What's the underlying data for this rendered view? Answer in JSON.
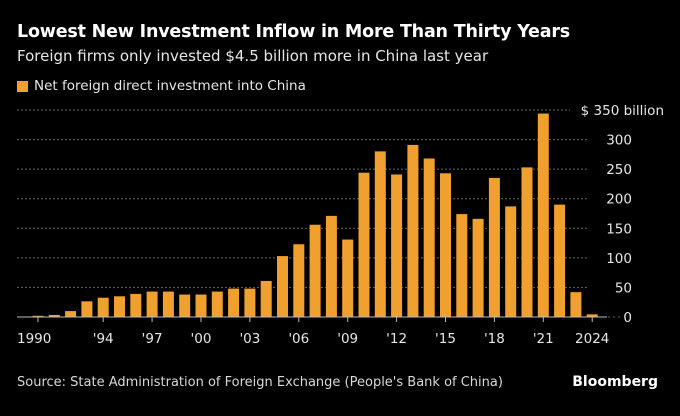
{
  "title": "Lowest New Investment Inflow in More Than Thirty Years",
  "subtitle": "Foreign firms only invested $4.5 billion more in China last year",
  "source": "Source: State Administration of Foreign Exchange (People's Bank of China)",
  "brand": "Bloomberg",
  "colors": {
    "bar": "#f0a02e",
    "background": "#000000",
    "grid": "#666666"
  },
  "chart_data": {
    "type": "bar",
    "legend": [
      "Net foreign direct investment into China"
    ],
    "legend_position": "top-left",
    "categories": [
      1990,
      1991,
      1992,
      1993,
      1994,
      1995,
      1996,
      1997,
      1998,
      1999,
      2000,
      2001,
      2002,
      2003,
      2004,
      2005,
      2006,
      2007,
      2008,
      2009,
      2010,
      2011,
      2012,
      2013,
      2014,
      2015,
      2016,
      2017,
      2018,
      2019,
      2020,
      2021,
      2022,
      2023,
      2024
    ],
    "series": [
      {
        "name": "Net foreign direct investment into China",
        "values": [
          2,
          3.5,
          10,
          26.5,
          32.6,
          35,
          39,
          43,
          43,
          38,
          38,
          43,
          48,
          48,
          61,
          103,
          123,
          156,
          171,
          131,
          244,
          280,
          241,
          291,
          268,
          243,
          174,
          166,
          235,
          187,
          253,
          344,
          190,
          42,
          4.5
        ]
      }
    ],
    "ylim": [
      0,
      350
    ],
    "yticks": [
      0,
      50,
      100,
      150,
      200,
      250,
      300,
      350
    ],
    "ytick_labels": [
      "0",
      "50",
      "100",
      "150",
      "200",
      "250",
      "300",
      "$ 350 billion"
    ],
    "xticks": [
      1990,
      1994,
      1997,
      2000,
      2003,
      2006,
      2009,
      2012,
      2015,
      2018,
      2021,
      2024
    ],
    "xtick_labels": [
      "1990",
      "'94",
      "'97",
      "'00",
      "'03",
      "'06",
      "'09",
      "'12",
      "'15",
      "'18",
      "'21",
      "2024"
    ],
    "y_axis_side": "right",
    "grid": true,
    "xlabel": "",
    "ylabel": ""
  }
}
